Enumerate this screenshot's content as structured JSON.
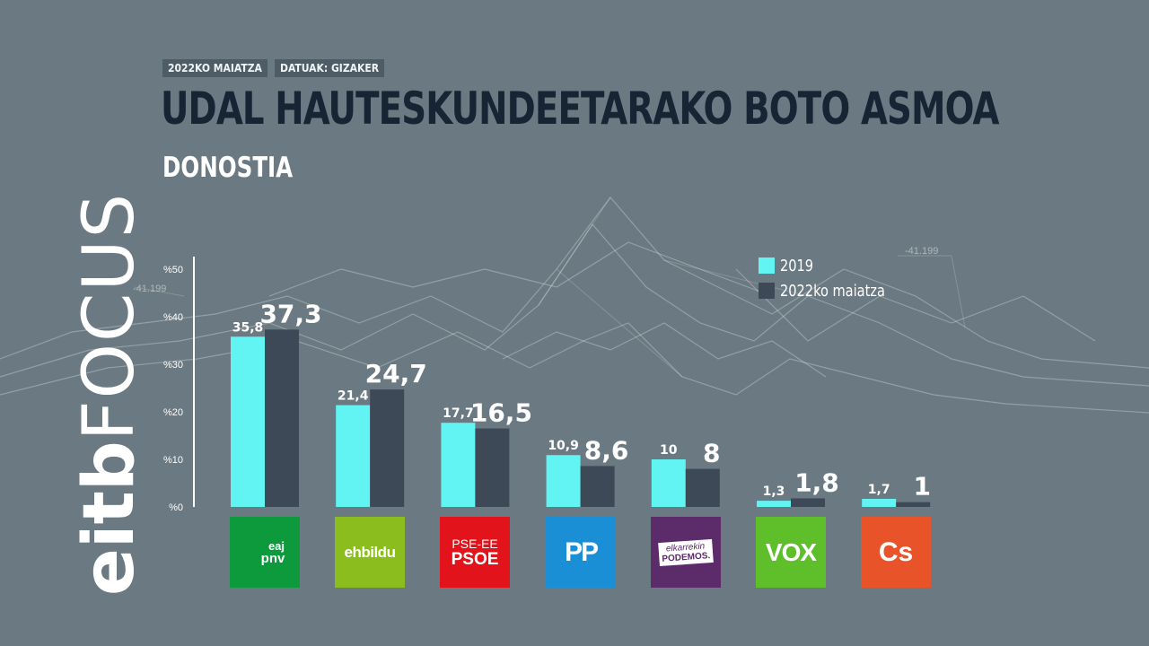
{
  "header": {
    "date_tag": "2022KO MAIATZA",
    "source_tag": "DATUAK: GIZAKER",
    "title": "UDAL HAUTESKUNDEETARAKO BOTO ASMOA",
    "subtitle": "DONOSTIA"
  },
  "brand": {
    "part1": "eitb",
    "part2": "FOCUS"
  },
  "background_annotations": [
    "-41.199",
    "-41.199"
  ],
  "colors": {
    "series_2019": "#62f3f3",
    "series_2022": "#3d4957",
    "background": "#6b7a82",
    "title": "#162433"
  },
  "parties": {
    "pnv": {
      "line1": "eaj",
      "line2": "pnv"
    },
    "bildu": {
      "name": "ehbildu"
    },
    "psoe": {
      "line1": "PSE-EE",
      "line2": "PSOE"
    },
    "pp": {
      "name": "PP"
    },
    "podemos": {
      "line1": "elkarrekin",
      "line2": "PODEMOS."
    },
    "vox": {
      "name": "VOX"
    },
    "cs": {
      "name": "Cs"
    }
  },
  "chart_data": {
    "type": "bar",
    "title": "UDAL HAUTESKUNDEETARAKO BOTO ASMOA",
    "subtitle": "DONOSTIA",
    "categories": [
      "EAJ-PNV",
      "EH Bildu",
      "PSE-EE PSOE",
      "PP",
      "Elkarrekin Podemos",
      "VOX",
      "Cs"
    ],
    "series": [
      {
        "name": "2019",
        "values": [
          35.8,
          21.4,
          17.7,
          10.9,
          10,
          1.3,
          1.7
        ],
        "labels": [
          "35,8",
          "21,4",
          "17,7",
          "10,9",
          "10",
          "1,3",
          "1,7"
        ]
      },
      {
        "name": "2022ko maiatza",
        "values": [
          37.3,
          24.7,
          16.5,
          8.6,
          8,
          1.8,
          1
        ],
        "labels": [
          "37,3",
          "24,7",
          "16,5",
          "8,6",
          "8",
          "1,8",
          "1"
        ]
      }
    ],
    "y_ticks": [
      0,
      10,
      20,
      30,
      40,
      50
    ],
    "y_tick_labels": [
      "%0",
      "%10",
      "%20",
      "%30",
      "%40",
      "%50"
    ],
    "ylim": [
      0,
      50
    ],
    "xlabel": "",
    "ylabel": "",
    "legend_position": "top-right"
  }
}
